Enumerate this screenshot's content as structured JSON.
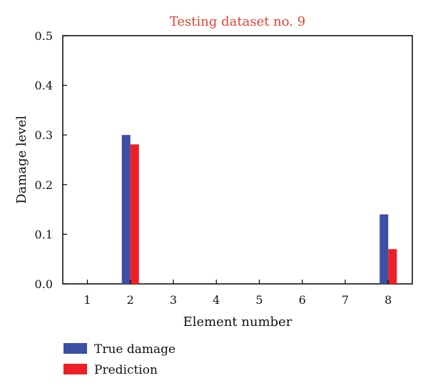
{
  "chart_data": {
    "type": "bar",
    "title": "Testing dataset no. 9",
    "xlabel": "Element number",
    "ylabel": "Damage level",
    "categories": [
      "1",
      "2",
      "3",
      "4",
      "5",
      "6",
      "7",
      "8"
    ],
    "ylim": [
      0,
      0.5
    ],
    "yticks": [
      "0.0",
      "0.1",
      "0.2",
      "0.3",
      "0.4",
      "0.5"
    ],
    "series": [
      {
        "name": "True damage",
        "color": "#3B4FA3",
        "values": [
          0,
          0.3,
          0,
          0,
          0,
          0,
          0,
          0.14
        ]
      },
      {
        "name": "Prediction",
        "color": "#EE1F24",
        "values": [
          0,
          0.281,
          0,
          0,
          0,
          0,
          0,
          0.07
        ]
      }
    ],
    "legend_position": "bottom-left",
    "title_color": "#E8412C",
    "grid": false
  }
}
